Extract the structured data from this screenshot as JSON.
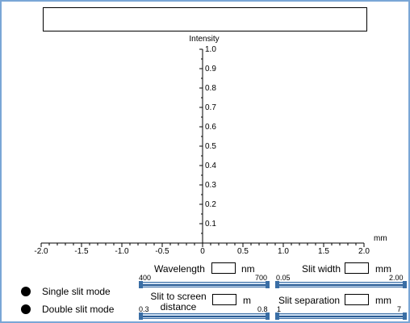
{
  "chart_data": {
    "type": "line",
    "ylabel": "Intensity",
    "xlabel": "mm",
    "xlim": [
      -2.0,
      2.0
    ],
    "ylim": [
      0,
      1.0
    ],
    "x_ticks": [
      "-2.0",
      "-1.5",
      "-1.0",
      "-0.5",
      "0",
      "0.5",
      "1.0",
      "1.5",
      "2.0"
    ],
    "y_ticks": [
      "0.1",
      "0.2",
      "0.3",
      "0.4",
      "0.5",
      "0.6",
      "0.7",
      "0.8",
      "0.9",
      "1.0"
    ],
    "series": []
  },
  "controls": {
    "wavelength": {
      "label": "Wavelength",
      "unit": "nm",
      "value": "",
      "min": "400",
      "max": "700"
    },
    "slit_width": {
      "label": "Slit width",
      "unit": "mm",
      "value": "",
      "min": "0.05",
      "max": "2.00"
    },
    "distance": {
      "label_line1": "Slit to screen",
      "label_line2": "distance",
      "unit": "m",
      "value": "",
      "min": "0.3",
      "max": "0.8"
    },
    "separation": {
      "label": "Slit separation",
      "unit": "mm",
      "value": "",
      "min": "1",
      "max": "7"
    }
  },
  "modes": {
    "single": "Single slit mode",
    "double": "Double slit mode"
  }
}
